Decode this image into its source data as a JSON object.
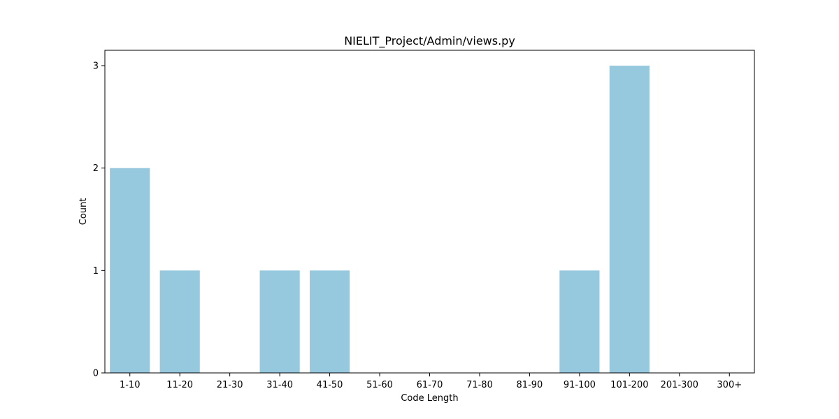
{
  "chart_data": {
    "type": "bar",
    "title": "NIELIT_Project/Admin/views.py",
    "xlabel": "Code Length",
    "ylabel": "Count",
    "categories": [
      "1-10",
      "11-20",
      "21-30",
      "31-40",
      "41-50",
      "51-60",
      "61-70",
      "71-80",
      "81-90",
      "91-100",
      "101-200",
      "201-300",
      "300+"
    ],
    "values": [
      2,
      1,
      0,
      1,
      1,
      0,
      0,
      0,
      0,
      1,
      3,
      0,
      0
    ],
    "yticks": [
      "0",
      "1",
      "2",
      "3"
    ],
    "ylim": [
      0,
      3.15
    ],
    "grid": false,
    "bar_color": "#96c9de"
  }
}
